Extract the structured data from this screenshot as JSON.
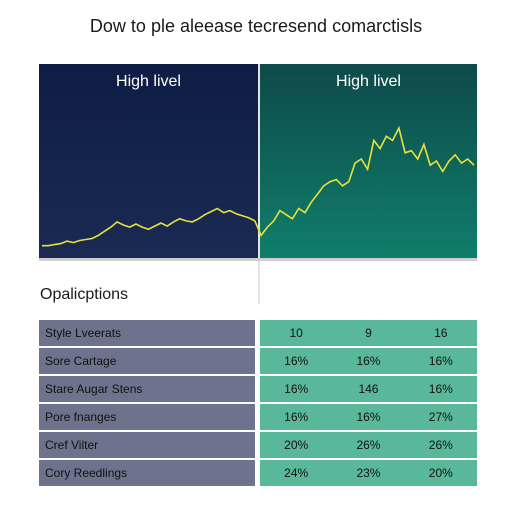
{
  "title": "Dow to ple aleease tecresend comarctisls",
  "panels": [
    {
      "label": "High livel",
      "color": "#0f1d45"
    },
    {
      "label": "High livel",
      "color": "#0f7e6a"
    }
  ],
  "line_color": "#e7e23a",
  "section_title": "Opalicptions",
  "rows": [
    {
      "label": "Style Lveerats",
      "values": [
        "10",
        "9",
        "16"
      ]
    },
    {
      "label": "Sore Cartage",
      "values": [
        "16%",
        "16%",
        "16%"
      ]
    },
    {
      "label": "Stare Augar Stens",
      "values": [
        "16%",
        "146",
        "16%"
      ]
    },
    {
      "label": "Pore fnanges",
      "values": [
        "16%",
        "16%",
        "27%"
      ]
    },
    {
      "label": "Cref Vilter",
      "values": [
        "20%",
        "26%",
        "26%"
      ]
    },
    {
      "label": "Cory Reedlings",
      "values": [
        "24%",
        "23%",
        "20%"
      ]
    }
  ],
  "chart_data": {
    "type": "line",
    "title": "Dow to ple aleease tecresend comarctisls",
    "panels": [
      "High livel",
      "High livel"
    ],
    "series": [
      {
        "values": [
          5,
          5,
          5.5,
          6,
          7.2,
          6.5,
          7.5,
          8,
          8.5,
          10,
          12,
          14,
          16.5,
          15,
          14,
          15.5,
          14,
          13,
          14.5,
          16,
          14.5,
          16.5,
          18,
          17,
          16.5,
          18,
          20,
          21.5,
          23,
          21,
          22,
          20.5,
          19.5,
          18.5,
          17,
          10,
          14,
          17,
          22,
          20,
          18,
          23,
          21,
          26,
          30,
          34,
          36,
          37,
          34,
          36,
          45,
          47,
          42,
          56,
          52,
          58,
          56,
          62,
          50,
          51,
          47,
          54,
          44,
          46,
          41,
          46,
          49,
          45,
          47,
          44
        ]
      }
    ],
    "grid": false,
    "table": {
      "rows": [
        "Style Lveerats",
        "Sore Cartage",
        "Stare Augar Stens",
        "Pore fnanges",
        "Cref Vilter",
        "Cory Reedlings"
      ],
      "values": [
        [
          "10",
          "9",
          "16"
        ],
        [
          "16%",
          "16%",
          "16%"
        ],
        [
          "16%",
          "146",
          "16%"
        ],
        [
          "16%",
          "16%",
          "27%"
        ],
        [
          "20%",
          "26%",
          "26%"
        ],
        [
          "24%",
          "23%",
          "20%"
        ]
      ]
    }
  }
}
